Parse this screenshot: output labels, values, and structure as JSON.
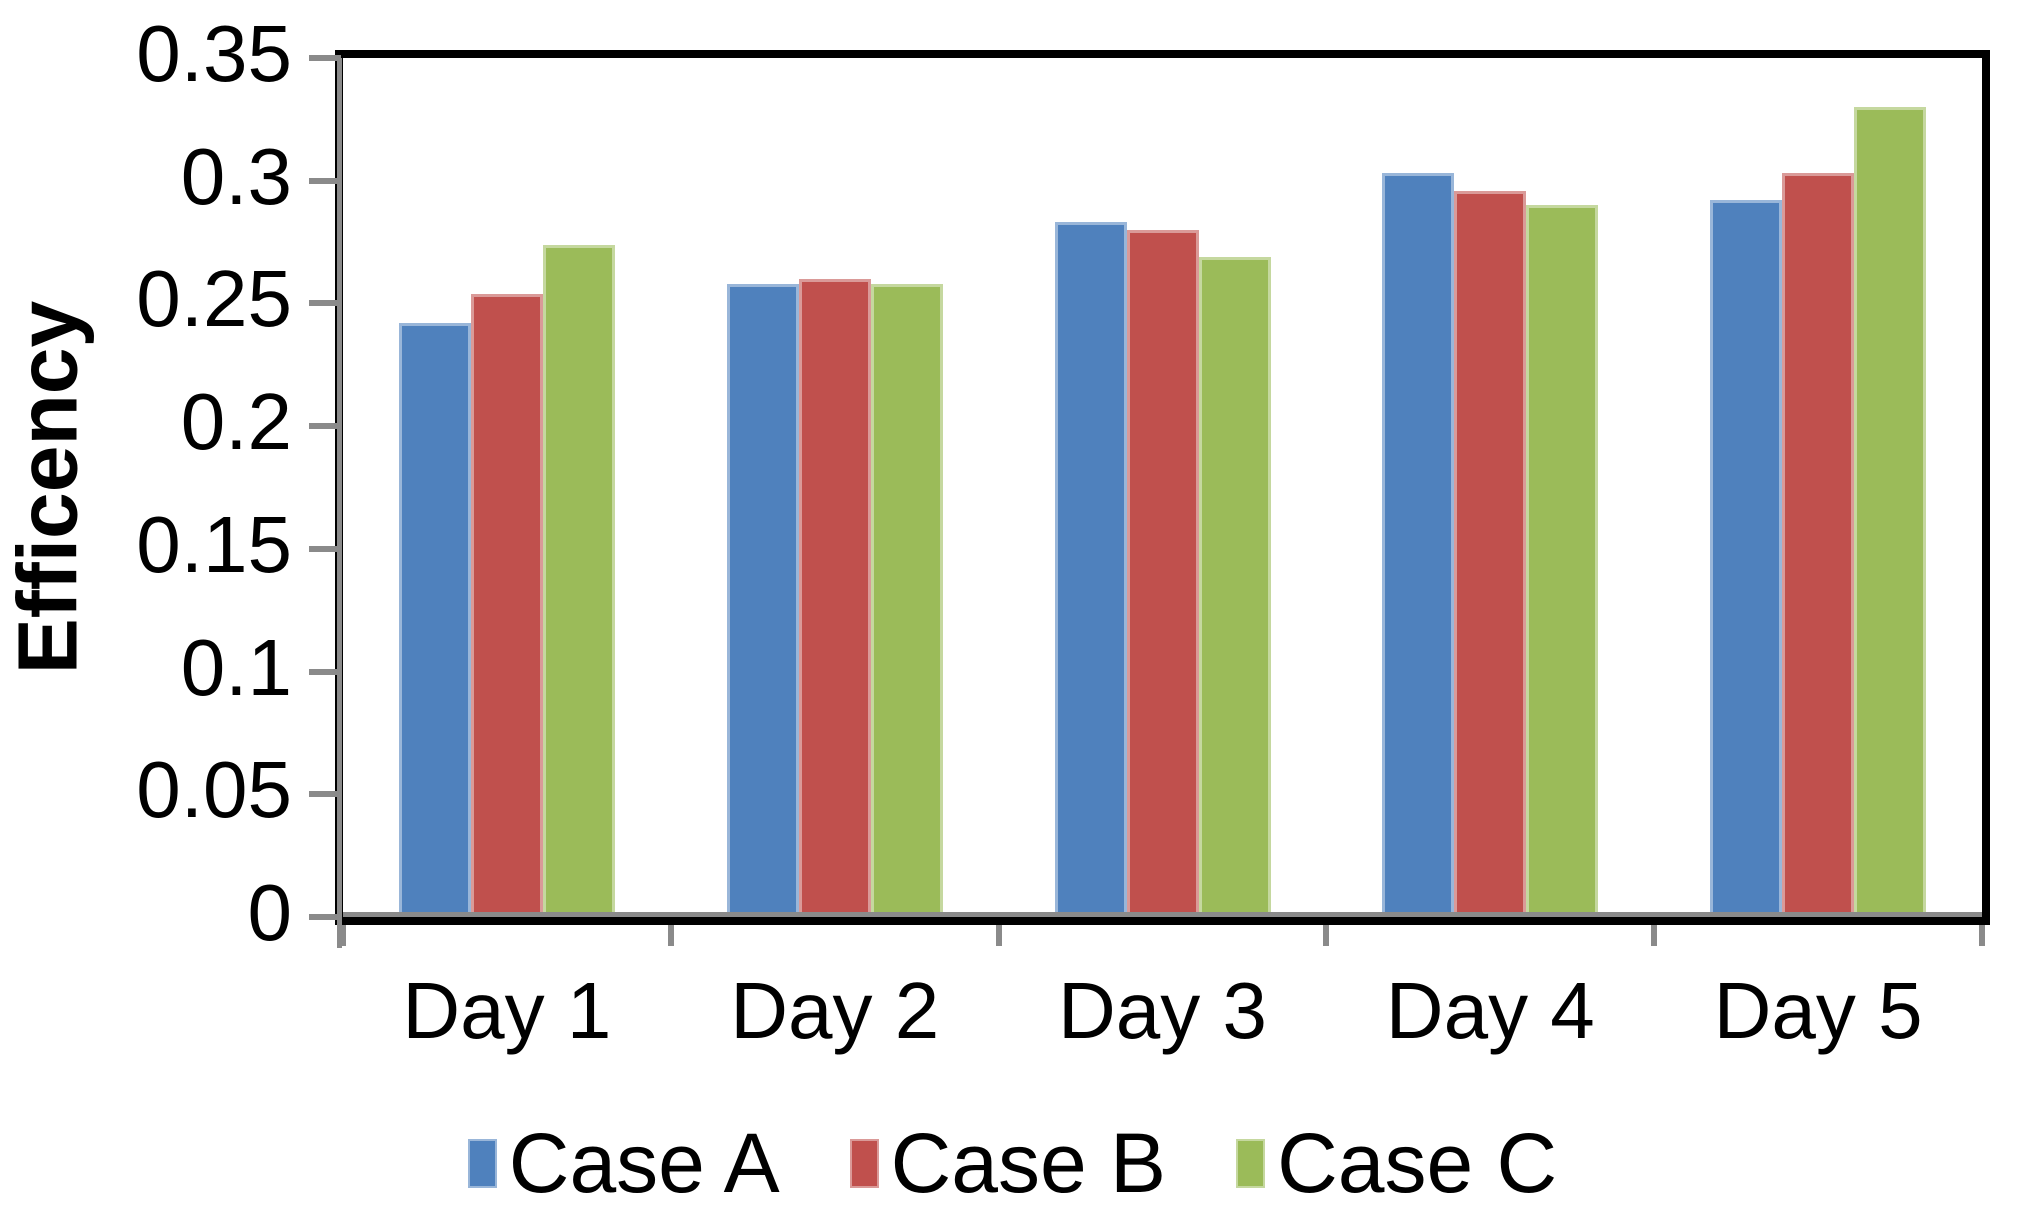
{
  "chart_data": {
    "type": "bar",
    "title": "",
    "ylabel": "Efficency",
    "xlabel": "",
    "categories": [
      "Day 1",
      "Day 2",
      "Day 3",
      "Day 4",
      "Day 5"
    ],
    "series": [
      {
        "name": "Case A",
        "color": "#4F81BD",
        "values": [
          0.242,
          0.258,
          0.283,
          0.303,
          0.292
        ]
      },
      {
        "name": "Case B",
        "color": "#C0504D",
        "values": [
          0.254,
          0.26,
          0.28,
          0.296,
          0.303
        ]
      },
      {
        "name": "Case C",
        "color": "#9BBB59",
        "values": [
          0.274,
          0.258,
          0.269,
          0.29,
          0.33
        ]
      }
    ],
    "ylim": [
      0,
      0.35
    ],
    "yticks": [
      0,
      0.05,
      0.1,
      0.15,
      0.2,
      0.25,
      0.3,
      0.35
    ],
    "ytick_labels": [
      "0",
      "0.05",
      "0.1",
      "0.15",
      "0.2",
      "0.25",
      "0.3",
      "0.35"
    ],
    "grid": false,
    "legend_position": "bottom",
    "legend_entries": [
      "Case A",
      "Case B",
      "Case C"
    ]
  },
  "colors": {
    "axis_tick": "#8a8a8a",
    "plot_border": "#000000",
    "text": "#000000",
    "background": "#ffffff"
  }
}
